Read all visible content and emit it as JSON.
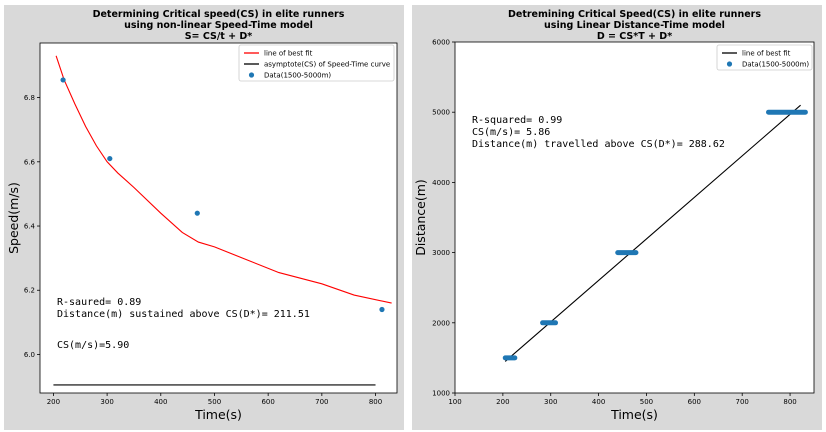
{
  "chart_data": [
    {
      "type": "line",
      "title": [
        "Determining Critical speed(CS) in elite runners",
        "using non-linear Speed-Time model",
        "S= CS/t + D*"
      ],
      "xlabel": "Time(s)",
      "ylabel": "Speed(m/s)",
      "xlim": [
        175,
        840
      ],
      "ylim": [
        5.88,
        6.97
      ],
      "xticks": [
        200,
        300,
        400,
        500,
        600,
        700,
        800
      ],
      "yticks": [
        6.0,
        6.2,
        6.4,
        6.6,
        6.8
      ],
      "legend": [
        "line of best fit",
        "asymptote(CS) of Speed-Time curve",
        "Data(1500-5000m)"
      ],
      "series": [
        {
          "name": "line of best fit",
          "kind": "line",
          "color": "#ff0000",
          "x": [
            205,
            220,
            240,
            260,
            280,
            300,
            320,
            350,
            400,
            440,
            470,
            500,
            560,
            620,
            700,
            760,
            830
          ],
          "y": [
            6.93,
            6.855,
            6.78,
            6.71,
            6.65,
            6.6,
            6.565,
            6.52,
            6.44,
            6.38,
            6.35,
            6.335,
            6.295,
            6.255,
            6.22,
            6.185,
            6.16
          ]
        },
        {
          "name": "asymptote(CS) of Speed-Time curve",
          "kind": "line",
          "color": "#000000",
          "x": [
            200,
            800
          ],
          "y": [
            5.905,
            5.905
          ]
        },
        {
          "name": "Data(1500-5000m)",
          "kind": "scatter",
          "color": "#1f77b4",
          "x": [
            218,
            305,
            468,
            812
          ],
          "y": [
            6.855,
            6.61,
            6.44,
            6.14
          ]
        }
      ],
      "annotations": [
        "R-saured= 0.89",
        "Distance(m) sustained above CS(D*)= 211.51",
        "CS(m/s)=5.90"
      ]
    },
    {
      "type": "line",
      "title": [
        "Detremining Critical Speed(CS) in elite runners",
        "using Linear Distance-Time model",
        "D = CS*T + D*"
      ],
      "xlabel": "Time(s)",
      "ylabel": "Distance(m)",
      "xlim": [
        100,
        850
      ],
      "ylim": [
        1000,
        6000
      ],
      "xticks": [
        100,
        200,
        300,
        400,
        500,
        600,
        700,
        800
      ],
      "yticks": [
        1000,
        2000,
        3000,
        4000,
        5000,
        6000
      ],
      "legend": [
        "line of best fit",
        "Data(1500-5000m)"
      ],
      "series": [
        {
          "name": "line of best fit",
          "kind": "line",
          "color": "#000000",
          "x": [
            205,
            822
          ],
          "y": [
            1450,
            5100
          ]
        },
        {
          "name": "Data(1500-5000m)",
          "kind": "segments",
          "color": "#1f77b4",
          "segments": [
            {
              "x0": 205,
              "x1": 225,
              "y": 1500
            },
            {
              "x0": 283,
              "x1": 310,
              "y": 2000
            },
            {
              "x0": 440,
              "x1": 478,
              "y": 3000
            },
            {
              "x0": 755,
              "x1": 832,
              "y": 5000
            }
          ]
        }
      ],
      "annotations": [
        "R-squared= 0.99",
        "CS(m/s)= 5.86",
        "Distance(m) travelled above CS(D*)= 288.62"
      ]
    }
  ]
}
